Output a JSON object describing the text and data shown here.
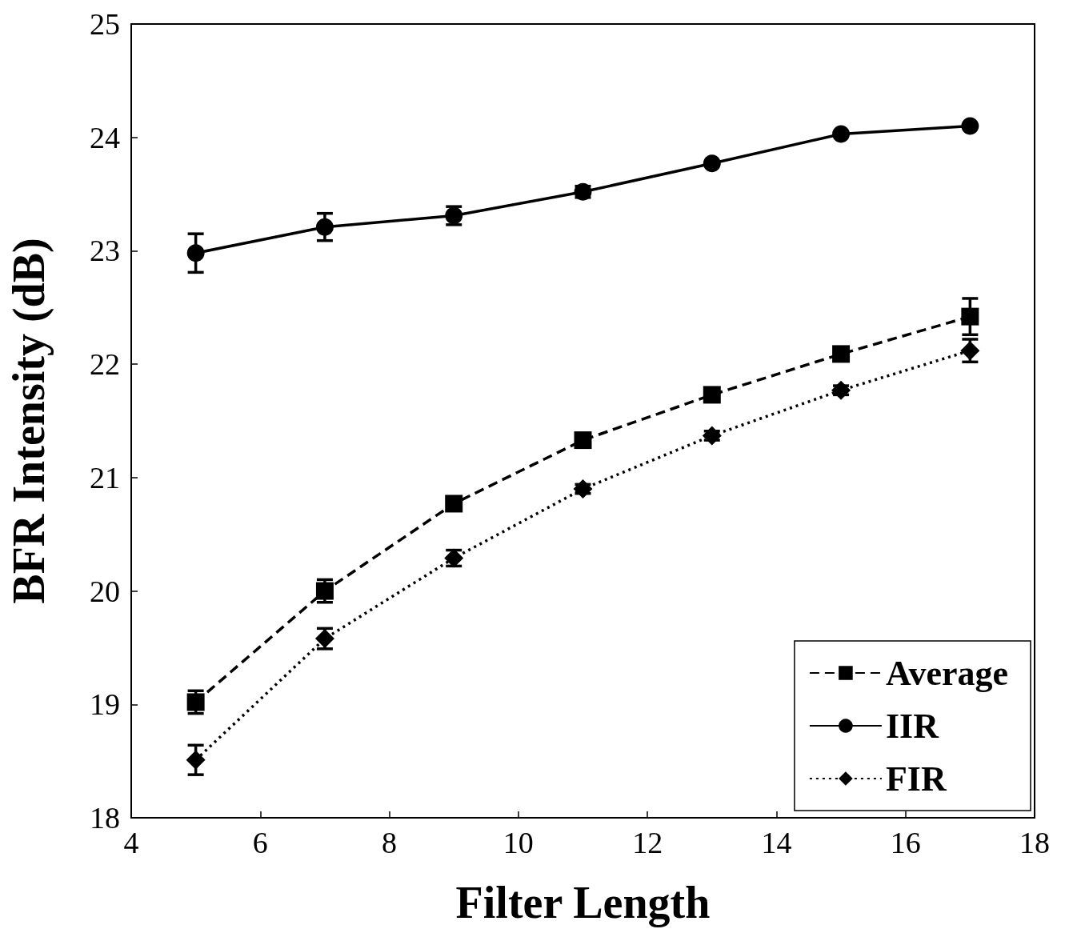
{
  "chart_data": {
    "type": "line",
    "xlabel": "Filter Length",
    "ylabel": "BFR Intensity (dB)",
    "x": [
      5,
      7,
      9,
      11,
      13,
      15,
      17
    ],
    "series": [
      {
        "name": "Average",
        "color": "#000000",
        "marker": "square",
        "line_style": "dashed",
        "values": [
          19.02,
          20.0,
          20.77,
          21.33,
          21.73,
          22.09,
          22.42
        ],
        "errors": [
          0.1,
          0.1,
          0.06,
          0.03,
          0.03,
          0.04,
          0.16
        ]
      },
      {
        "name": "IIR",
        "color": "#000000",
        "marker": "circle",
        "line_style": "solid",
        "values": [
          22.98,
          23.21,
          23.31,
          23.52,
          23.77,
          24.03,
          24.1
        ],
        "errors": [
          0.17,
          0.12,
          0.08,
          0.05,
          null,
          null,
          null
        ]
      },
      {
        "name": "FIR",
        "color": "#000000",
        "marker": "diamond",
        "line_style": "dotted",
        "values": [
          18.51,
          19.58,
          20.29,
          20.9,
          21.37,
          21.77,
          22.12
        ],
        "errors": [
          0.13,
          0.09,
          0.07,
          0.04,
          0.04,
          0.04,
          0.1
        ]
      }
    ],
    "xlim": [
      4,
      18
    ],
    "xticks": [
      4,
      6,
      8,
      10,
      12,
      14,
      16,
      18
    ],
    "ylim": [
      18,
      25
    ],
    "yticks": [
      18,
      19,
      20,
      21,
      22,
      23,
      24,
      25
    ],
    "grid": false,
    "legend": "bottom right"
  }
}
